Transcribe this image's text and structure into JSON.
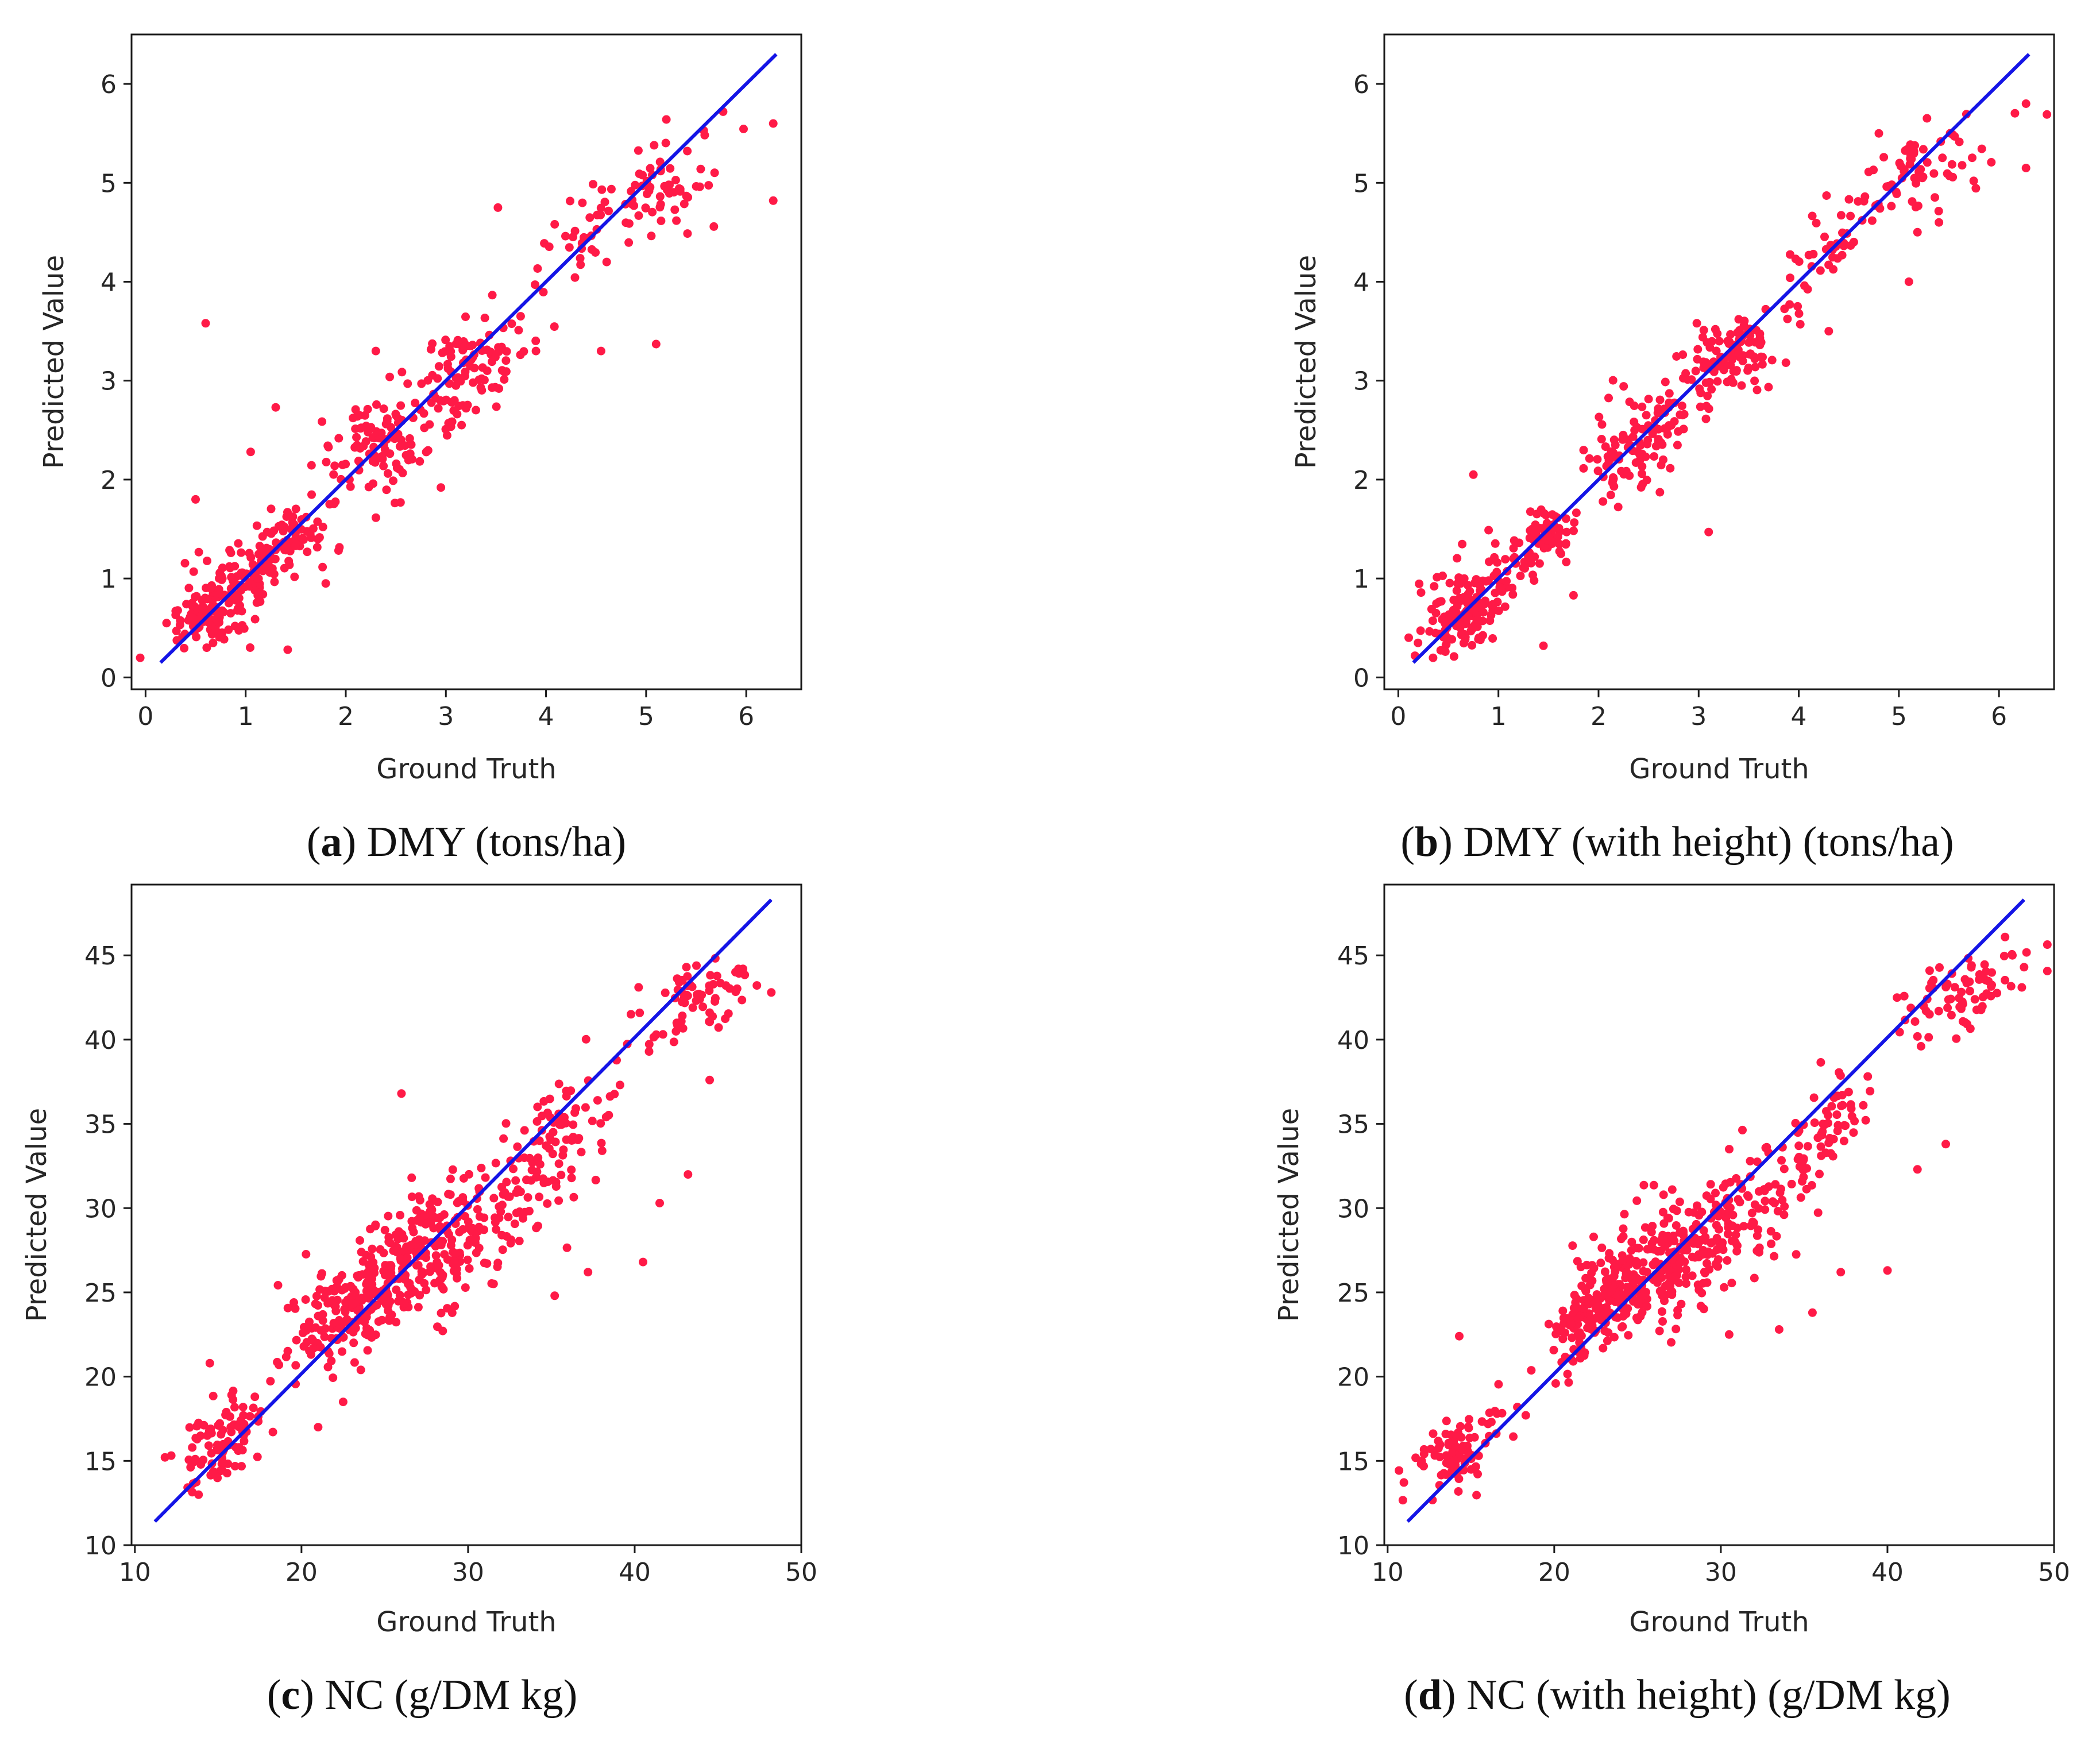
{
  "colors": {
    "point": "#ff1a47",
    "fit_line": "#1414e6",
    "axis": "#1a1a1a",
    "text": "#262626"
  },
  "chart_data": [
    {
      "id": "a",
      "type": "scatter",
      "caption": {
        "letter": "a",
        "text": ") DMY (tons/ha)"
      },
      "xlabel": "Ground Truth",
      "ylabel": "Predicted Value",
      "xlim": [
        -0.14,
        6.55
      ],
      "ylim": [
        -0.12,
        6.5
      ],
      "xticks": [
        0,
        1,
        2,
        3,
        4,
        5,
        6
      ],
      "yticks": [
        0,
        1,
        2,
        3,
        4,
        5,
        6
      ],
      "fit_line": {
        "x": [
          0.15,
          6.3
        ],
        "y": [
          0.15,
          6.3
        ]
      },
      "outliers": [
        [
          0.6,
          3.58
        ],
        [
          1.05,
          2.28
        ],
        [
          1.3,
          2.73
        ],
        [
          1.42,
          0.28
        ],
        [
          2.95,
          1.92
        ],
        [
          3.52,
          4.75
        ],
        [
          4.55,
          3.3
        ],
        [
          5.1,
          3.37
        ],
        [
          6.27,
          4.82
        ],
        [
          6.27,
          5.6
        ],
        [
          0.5,
          1.8
        ],
        [
          1.8,
          0.95
        ],
        [
          3.9,
          3.3
        ],
        [
          2.3,
          3.3
        ]
      ],
      "clusters": [
        {
          "cx": 0.75,
          "cy": 0.78,
          "sx": 0.32,
          "sy": 0.3,
          "n": 150
        },
        {
          "cx": 1.35,
          "cy": 1.3,
          "sx": 0.25,
          "sy": 0.24,
          "n": 90
        },
        {
          "cx": 2.35,
          "cy": 2.35,
          "sx": 0.35,
          "sy": 0.35,
          "n": 110
        },
        {
          "cx": 3.2,
          "cy": 3.1,
          "sx": 0.35,
          "sy": 0.35,
          "n": 110
        },
        {
          "cx": 4.25,
          "cy": 4.3,
          "sx": 0.22,
          "sy": 0.3,
          "n": 25
        },
        {
          "cx": 5.15,
          "cy": 4.95,
          "sx": 0.45,
          "sy": 0.3,
          "n": 70
        }
      ]
    },
    {
      "id": "b",
      "type": "scatter",
      "caption": {
        "letter": "b",
        "text": ") DMY (with height) (tons/ha)"
      },
      "xlabel": "Ground Truth",
      "ylabel": "Predicted Value",
      "xlim": [
        -0.14,
        6.55
      ],
      "ylim": [
        -0.12,
        6.5
      ],
      "xticks": [
        0,
        1,
        2,
        3,
        4,
        5,
        6
      ],
      "yticks": [
        0,
        1,
        2,
        3,
        4,
        5,
        6
      ],
      "fit_line": {
        "x": [
          0.15,
          6.3
        ],
        "y": [
          0.15,
          6.3
        ]
      },
      "outliers": [
        [
          0.75,
          2.05
        ],
        [
          1.45,
          0.32
        ],
        [
          1.75,
          0.83
        ],
        [
          3.1,
          1.47
        ],
        [
          5.1,
          4.0
        ],
        [
          6.27,
          5.15
        ],
        [
          6.27,
          5.8
        ],
        [
          4.3,
          3.5
        ],
        [
          4.8,
          5.5
        ],
        [
          5.4,
          4.6
        ]
      ],
      "clusters": [
        {
          "cx": 0.7,
          "cy": 0.7,
          "sx": 0.3,
          "sy": 0.28,
          "n": 150
        },
        {
          "cx": 1.4,
          "cy": 1.4,
          "sx": 0.25,
          "sy": 0.22,
          "n": 90
        },
        {
          "cx": 2.4,
          "cy": 2.4,
          "sx": 0.35,
          "sy": 0.3,
          "n": 110
        },
        {
          "cx": 3.3,
          "cy": 3.25,
          "sx": 0.32,
          "sy": 0.25,
          "n": 110
        },
        {
          "cx": 4.3,
          "cy": 4.3,
          "sx": 0.25,
          "sy": 0.25,
          "n": 30
        },
        {
          "cx": 5.2,
          "cy": 5.1,
          "sx": 0.45,
          "sy": 0.3,
          "n": 70
        }
      ]
    },
    {
      "id": "c",
      "type": "scatter",
      "caption": {
        "letter": "c",
        "text": ") NC (g/DM kg)"
      },
      "xlabel": "Ground Truth",
      "ylabel": "Predicted Value",
      "xlim": [
        9.8,
        50.0
      ],
      "ylim": [
        10.0,
        49.2
      ],
      "xticks": [
        10,
        20,
        30,
        40,
        50
      ],
      "yticks": [
        10,
        15,
        20,
        25,
        30,
        35,
        40,
        45
      ],
      "fit_line": {
        "x": [
          11.2,
          48.2
        ],
        "y": [
          11.4,
          48.3
        ]
      },
      "outliers": [
        [
          26.0,
          36.8
        ],
        [
          40.5,
          26.8
        ],
        [
          37.2,
          26.2
        ],
        [
          44.5,
          37.6
        ],
        [
          43.2,
          32.0
        ],
        [
          41.5,
          30.3
        ],
        [
          35.2,
          24.8
        ],
        [
          21.0,
          17.0
        ],
        [
          14.5,
          20.8
        ],
        [
          22.5,
          18.5
        ],
        [
          48.2,
          42.8
        ],
        [
          46.5,
          44.2
        ]
      ],
      "clusters": [
        {
          "cx": 15.0,
          "cy": 16.0,
          "sx": 1.5,
          "sy": 1.8,
          "n": 90
        },
        {
          "cx": 22.5,
          "cy": 23.8,
          "sx": 1.8,
          "sy": 2.0,
          "n": 130
        },
        {
          "cx": 26.5,
          "cy": 27.0,
          "sx": 2.8,
          "sy": 2.6,
          "n": 260
        },
        {
          "cx": 32.0,
          "cy": 30.0,
          "sx": 2.6,
          "sy": 3.0,
          "n": 90
        },
        {
          "cx": 36.0,
          "cy": 34.5,
          "sx": 1.8,
          "sy": 2.0,
          "n": 60
        },
        {
          "cx": 43.5,
          "cy": 42.3,
          "sx": 2.2,
          "sy": 1.6,
          "n": 70
        }
      ]
    },
    {
      "id": "d",
      "type": "scatter",
      "caption": {
        "letter": "d",
        "text": ") NC (with height) (g/DM kg)"
      },
      "xlabel": "Ground Truth",
      "ylabel": "Predicted Value",
      "xlim": [
        9.8,
        50.0
      ],
      "ylim": [
        10.0,
        49.2
      ],
      "xticks": [
        10,
        20,
        30,
        40,
        50
      ],
      "yticks": [
        10,
        15,
        20,
        25,
        30,
        35,
        40,
        45
      ],
      "fit_line": {
        "x": [
          11.2,
          48.2
        ],
        "y": [
          11.4,
          48.3
        ]
      },
      "outliers": [
        [
          14.3,
          22.4
        ],
        [
          40.0,
          26.3
        ],
        [
          35.5,
          23.8
        ],
        [
          37.2,
          26.2
        ],
        [
          43.5,
          33.8
        ],
        [
          41.8,
          32.3
        ],
        [
          33.5,
          22.8
        ],
        [
          30.5,
          22.5
        ],
        [
          48.2,
          44.3
        ],
        [
          47.5,
          45.0
        ]
      ],
      "clusters": [
        {
          "cx": 14.5,
          "cy": 15.8,
          "sx": 1.6,
          "sy": 1.6,
          "n": 90
        },
        {
          "cx": 22.5,
          "cy": 24.0,
          "sx": 1.6,
          "sy": 1.8,
          "n": 130
        },
        {
          "cx": 26.5,
          "cy": 26.8,
          "sx": 2.6,
          "sy": 2.4,
          "n": 260
        },
        {
          "cx": 31.5,
          "cy": 29.8,
          "sx": 2.6,
          "sy": 2.6,
          "n": 90
        },
        {
          "cx": 36.0,
          "cy": 34.5,
          "sx": 1.8,
          "sy": 2.0,
          "n": 60
        },
        {
          "cx": 44.0,
          "cy": 42.5,
          "sx": 2.4,
          "sy": 1.6,
          "n": 75
        }
      ]
    }
  ]
}
